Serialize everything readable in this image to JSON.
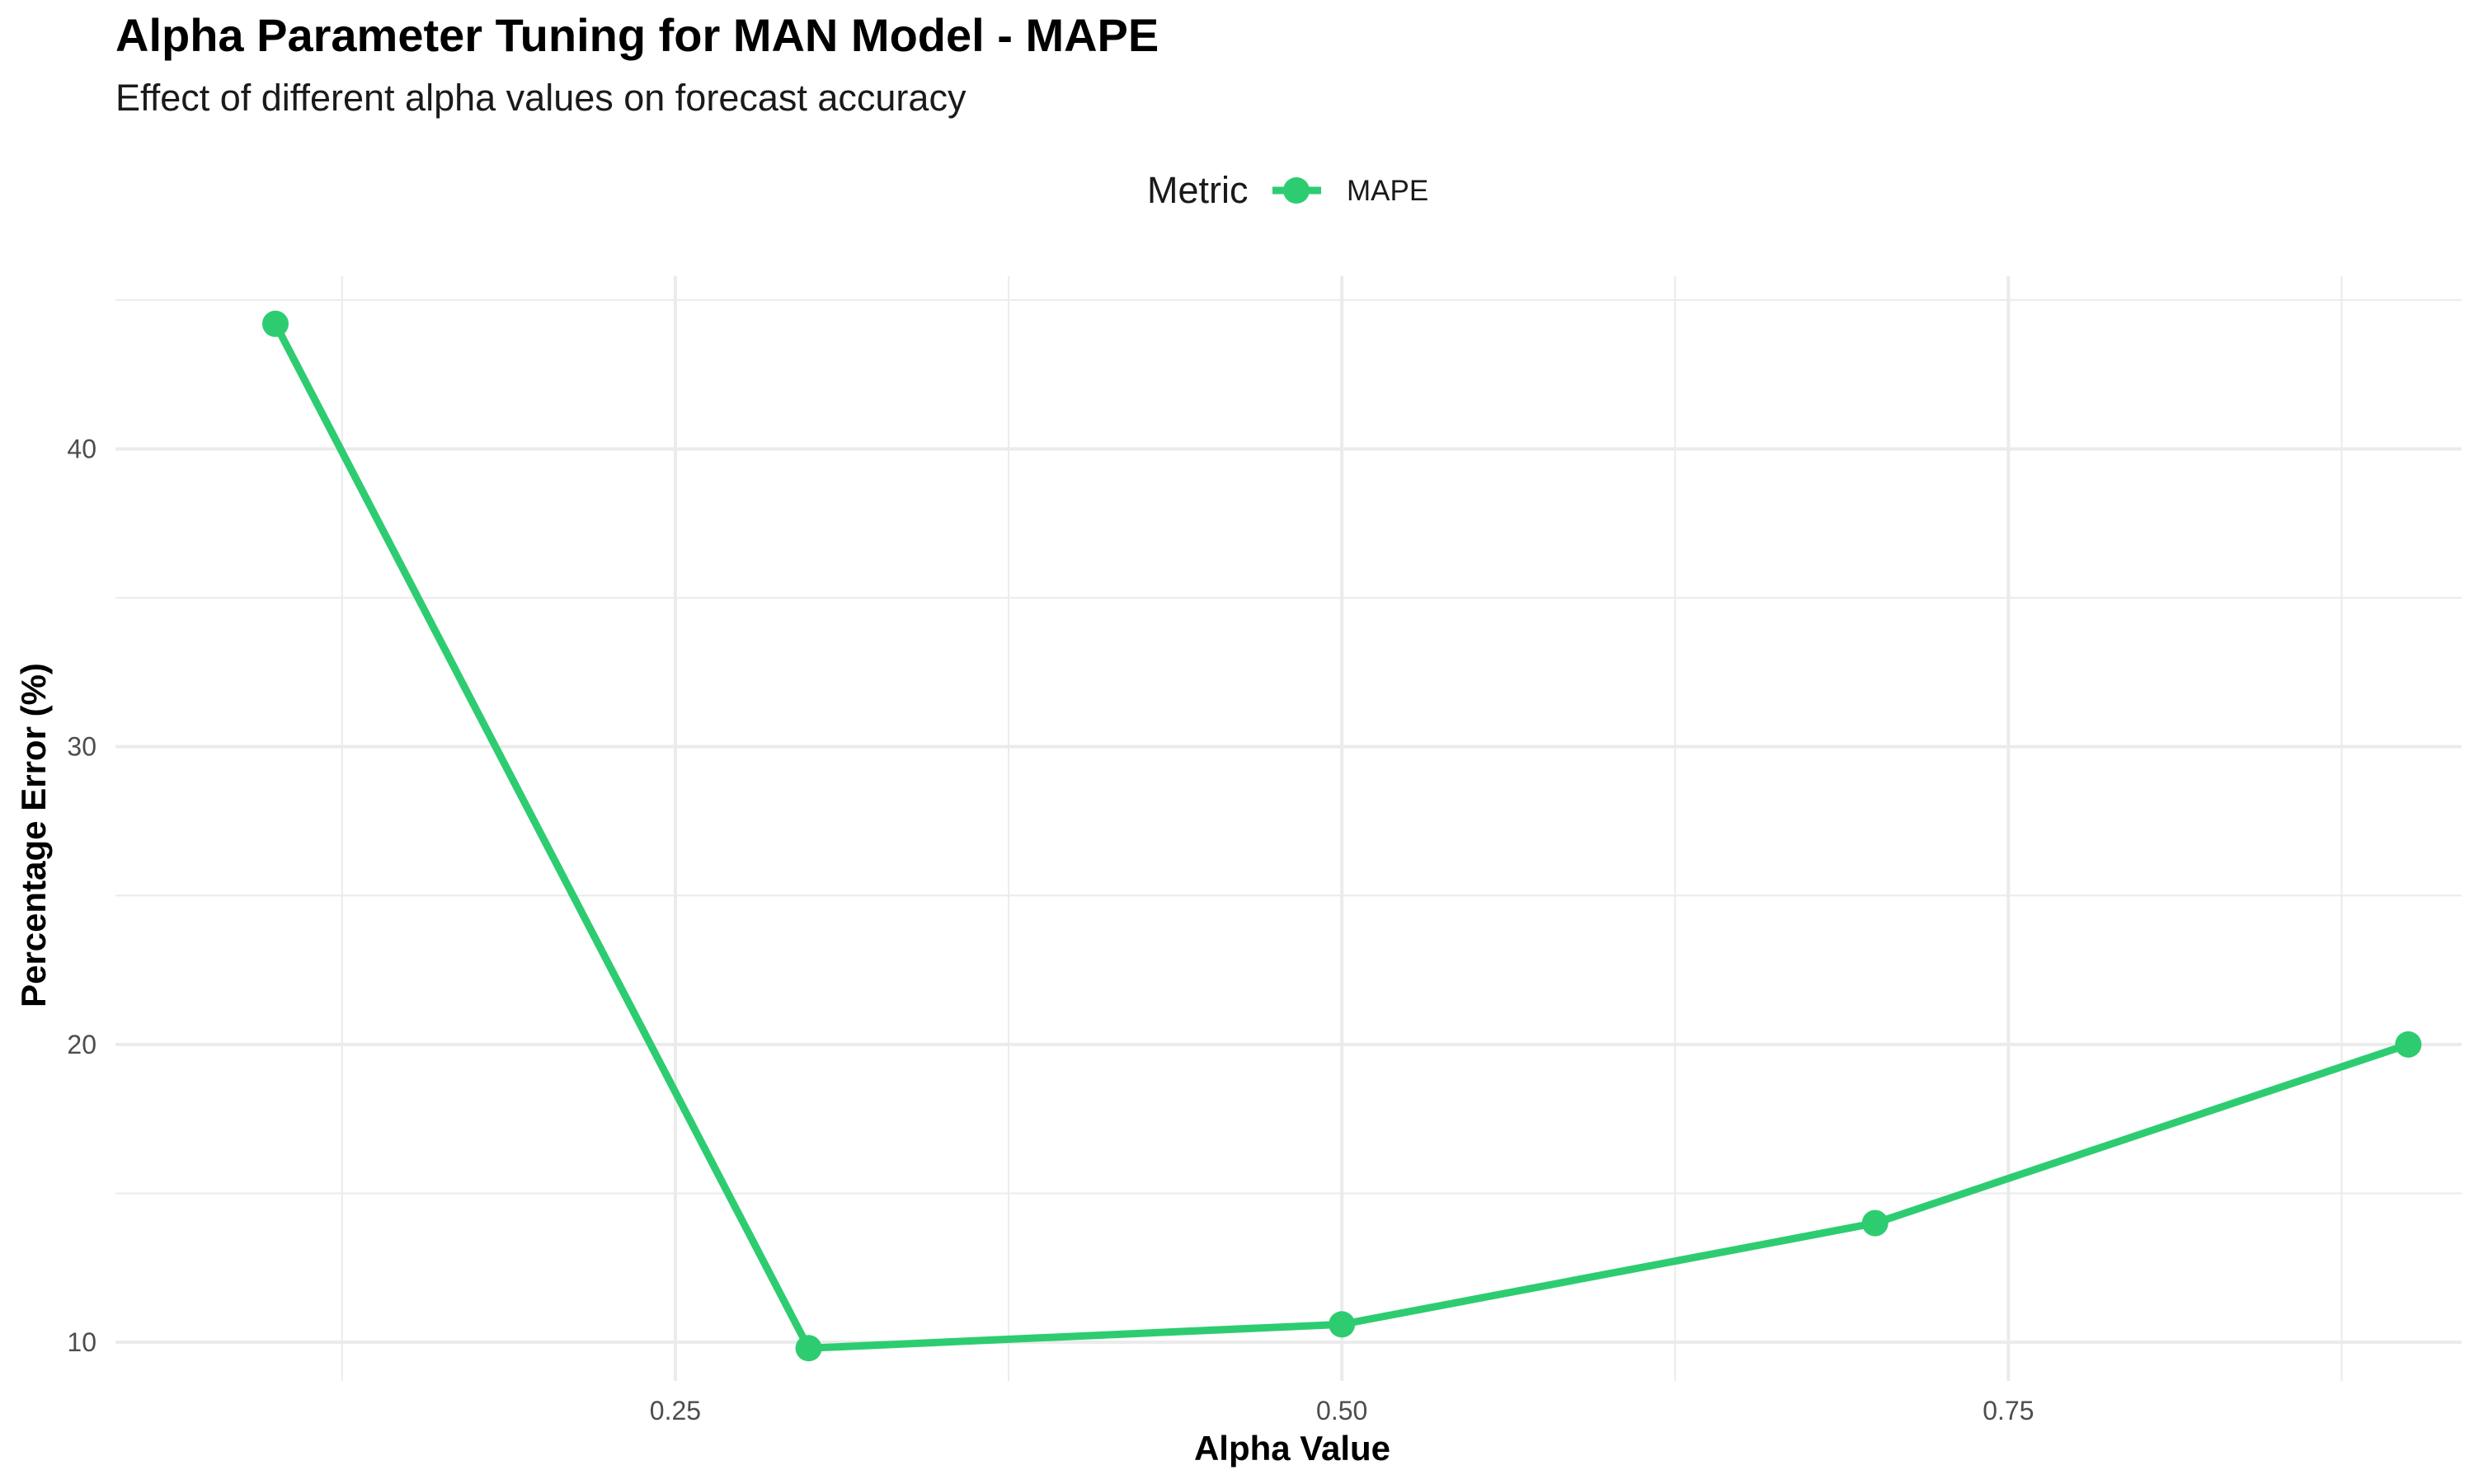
{
  "chart_data": {
    "type": "line",
    "title": "Alpha Parameter Tuning for MAN Model - MAPE",
    "subtitle": "Effect of different alpha values on forecast accuracy",
    "xlabel": "Alpha Value",
    "ylabel": "Percentage Error (%)",
    "xlim": [
      0.04,
      0.92
    ],
    "ylim": [
      8.7,
      45.8
    ],
    "x_ticks": [
      0.25,
      0.5,
      0.75
    ],
    "x_tick_labels": [
      "0.25",
      "0.50",
      "0.75"
    ],
    "x_minor": [
      0.125,
      0.375,
      0.625,
      0.875
    ],
    "y_ticks": [
      10,
      20,
      30,
      40
    ],
    "y_tick_labels": [
      "10",
      "20",
      "30",
      "40"
    ],
    "y_minor": [
      15,
      25,
      35,
      45
    ],
    "grid": true,
    "legend": {
      "title": "Metric",
      "position": "top",
      "entries": [
        {
          "label": "MAPE",
          "color": "#2ECC71"
        }
      ]
    },
    "series": [
      {
        "name": "MAPE",
        "color": "#2ECC71",
        "x": [
          0.1,
          0.3,
          0.5,
          0.7,
          0.9
        ],
        "y": [
          44.2,
          9.8,
          10.6,
          14.0,
          20.0
        ]
      }
    ]
  }
}
